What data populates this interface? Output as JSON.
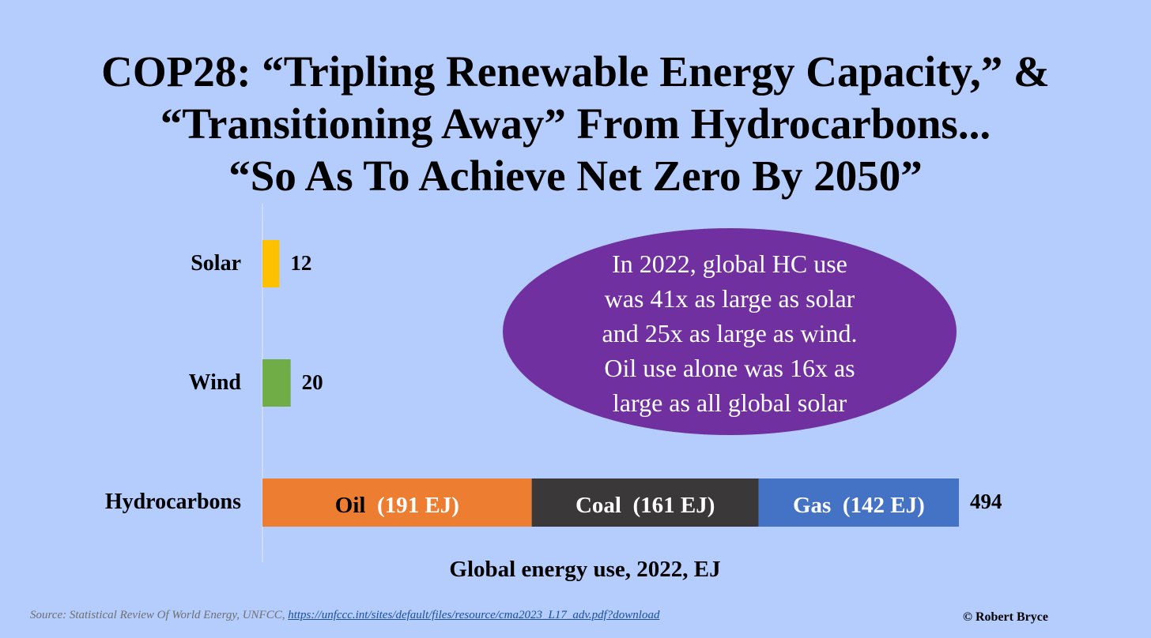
{
  "title_lines": [
    "COP28: “Tripling Renewable Energy Capacity,” &",
    "“Transitioning Away” From Hydrocarbons...",
    "“So As To Achieve Net Zero By 2050”"
  ],
  "chart_data": {
    "type": "bar",
    "orientation": "horizontal",
    "xlabel": "Global energy use, 2022, EJ",
    "categories": [
      "Solar",
      "Wind",
      "Hydrocarbons"
    ],
    "totals": [
      12,
      20,
      494
    ],
    "total_labels": [
      "12",
      "20",
      "494"
    ],
    "simple_bars": [
      {
        "category": "Solar",
        "value": 12,
        "color": "#ffc000"
      },
      {
        "category": "Wind",
        "value": 20,
        "color": "#70ad47"
      }
    ],
    "stacked_bar": {
      "category": "Hydrocarbons",
      "segments": [
        {
          "name": "Oil",
          "value": 191,
          "value_text": "(191 EJ)",
          "color": "#ed7d31",
          "name_color": "#000000"
        },
        {
          "name": "Coal",
          "value": 161,
          "value_text": "(161 EJ)",
          "color": "#3a3838",
          "name_color": "#ffffff"
        },
        {
          "name": "Gas",
          "value": 142,
          "value_text": "(142 EJ)",
          "color": "#4472c4",
          "name_color": "#ffffff"
        }
      ]
    },
    "xlim": [
      0,
      494
    ],
    "grid": false
  },
  "callout": {
    "lines": [
      "In 2022, global HC use",
      "was 41x as large as solar",
      "and 25x as large as wind.",
      "Oil use alone was 16x as",
      "large as all global solar"
    ],
    "color": "#7030a0"
  },
  "source": {
    "prefix": "Source: Statistical Review Of World Energy, UNFCC, ",
    "link": "https://unfccc.int/sites/default/files/resource/cma2023_L17_adv.pdf?download"
  },
  "copyright": "© Robert Bryce",
  "colors": {
    "background": "#b4cdfd"
  }
}
